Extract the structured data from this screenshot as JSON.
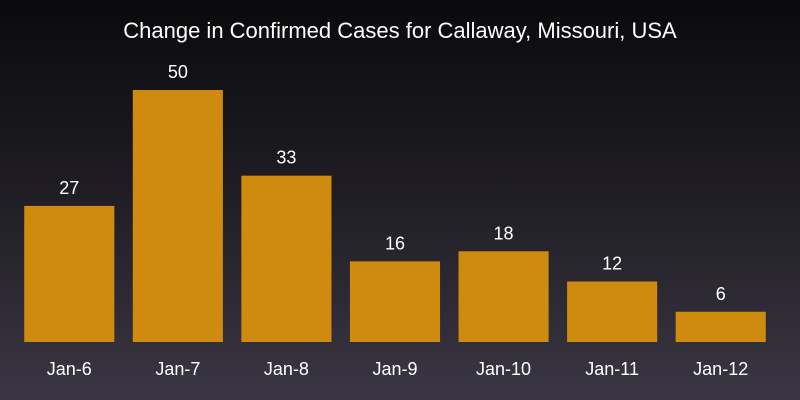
{
  "chart_data": {
    "type": "bar",
    "title": "Change in Confirmed Cases for Callaway, Missouri, USA",
    "categories": [
      "Jan-6",
      "Jan-7",
      "Jan-8",
      "Jan-9",
      "Jan-10",
      "Jan-11",
      "Jan-12"
    ],
    "values": [
      27,
      50,
      33,
      16,
      18,
      12,
      6
    ],
    "xlabel": "",
    "ylabel": "",
    "ylim": [
      0,
      50
    ],
    "grid": false,
    "bar_color": "#cf8a10"
  }
}
